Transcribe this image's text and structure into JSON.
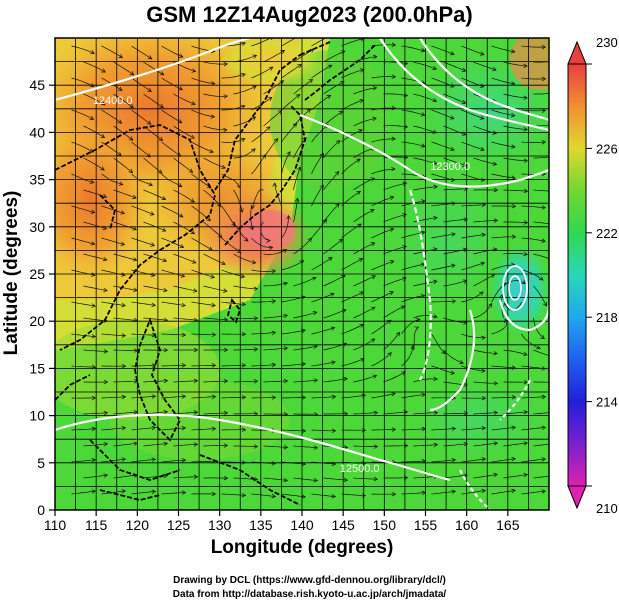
{
  "title": "GSM 12Z14Aug2023 (200.0hPa)",
  "x_axis": {
    "label": "Longitude (degrees)",
    "ticks": [
      "110",
      "115",
      "120",
      "125",
      "130",
      "135",
      "140",
      "145",
      "150",
      "155",
      "160",
      "165"
    ],
    "range": [
      110,
      170
    ]
  },
  "y_axis": {
    "label": "Latitude (degrees)",
    "ticks": [
      "0",
      "5",
      "10",
      "15",
      "20",
      "25",
      "30",
      "35",
      "40",
      "45"
    ],
    "range": [
      0,
      50
    ]
  },
  "colorbar": {
    "ticks": [
      "230",
      "226",
      "222",
      "218",
      "214",
      "210"
    ],
    "range": [
      210,
      230
    ]
  },
  "contour_labels": [
    {
      "text": "12400.0",
      "lon": 117,
      "lat": 43
    },
    {
      "text": "12300.0",
      "lon": 158,
      "lat": 36
    },
    {
      "text": "12500.0",
      "lon": 147,
      "lat": 4
    }
  ],
  "credits": {
    "line1": "Drawing by DCL (https://www.gfd-dennou.org/library/dcl/)",
    "line2": "Data from http://database.rish.kyoto-u.ac.jp/arch/jmadata/"
  }
}
